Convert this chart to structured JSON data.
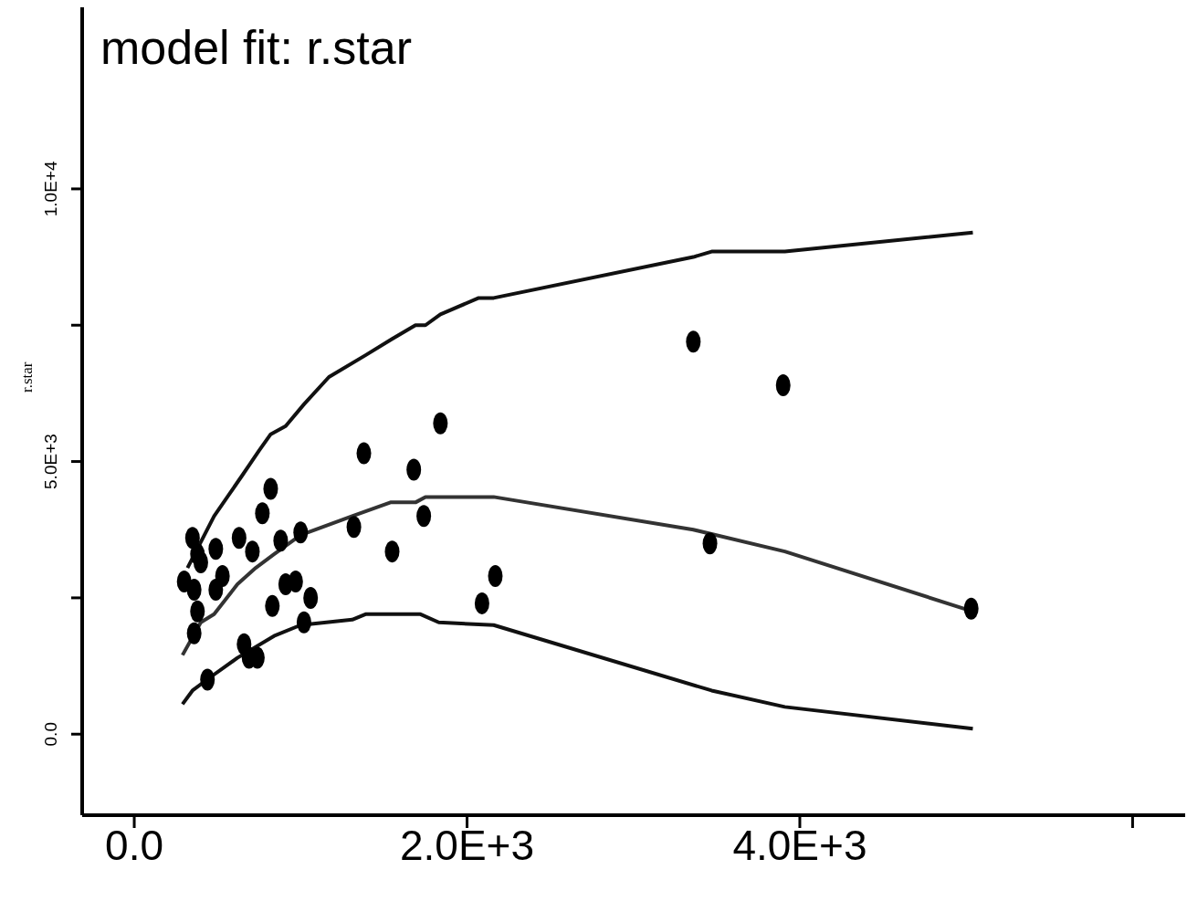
{
  "chart_data": {
    "type": "scatter",
    "title": "model fit: r.star",
    "ylabel": "r.star",
    "xlim": [
      -313,
      6316
    ],
    "ylim": [
      -1486,
      13330
    ],
    "xticks": [
      {
        "value": 0,
        "label": "0.0"
      },
      {
        "value": 2000,
        "label": "2.0E+3"
      },
      {
        "value": 4000,
        "label": "4.0E+3"
      },
      {
        "value": 6000,
        "label": null
      }
    ],
    "yticks": [
      {
        "value": 0,
        "label": "0.0"
      },
      {
        "value": 2500,
        "label": null
      },
      {
        "value": 5000,
        "label": "5.0E+3"
      },
      {
        "value": 7500,
        "label": null
      },
      {
        "value": 10000,
        "label": "1.0E+4"
      }
    ],
    "grid": false,
    "legend": false,
    "series": [
      {
        "color": "#000000",
        "marker": "circle",
        "x": [
          300,
          350,
          360,
          380,
          400,
          360,
          380,
          440,
          490,
          490,
          530,
          630,
          660,
          710,
          690,
          740,
          770,
          820,
          830,
          880,
          910,
          970,
          1000,
          1020,
          1060,
          1320,
          1380,
          1550,
          1680,
          1740,
          1840,
          2090,
          2170,
          3360,
          3460,
          3900,
          5030
        ],
        "values": [
          2800,
          3600,
          2650,
          3300,
          3150,
          1850,
          2250,
          1000,
          3400,
          2650,
          2900,
          3600,
          1650,
          3350,
          1400,
          1400,
          4050,
          4500,
          2350,
          3550,
          2750,
          2800,
          3700,
          2050,
          2500,
          3800,
          5150,
          3350,
          4850,
          4000,
          5700,
          2400,
          2900,
          7200,
          3500,
          6400,
          2300
        ]
      },
      {
        "type": "line",
        "color": "#111111",
        "marker": "none",
        "line_style": "solid",
        "x": [
          320,
          480,
          650,
          750,
          820,
          910,
          1020,
          1170,
          1390,
          1550,
          1690,
          1750,
          1840,
          2070,
          2160,
          3360,
          3470,
          3910,
          5040
        ],
        "values": [
          3050,
          4000,
          4750,
          5200,
          5500,
          5650,
          6050,
          6550,
          6950,
          7250,
          7500,
          7500,
          7700,
          8000,
          8000,
          8750,
          8850,
          8850,
          9200
        ]
      },
      {
        "type": "line",
        "color": "#333333",
        "marker": "none",
        "line_style": "solid",
        "x": [
          290,
          400,
          480,
          620,
          730,
          840,
          1000,
          1310,
          1540,
          1690,
          1750,
          2160,
          3360,
          3910,
          5040
        ],
        "values": [
          1450,
          2050,
          2200,
          2750,
          3050,
          3300,
          3650,
          4000,
          4250,
          4250,
          4350,
          4350,
          3750,
          3350,
          2250
        ]
      },
      {
        "type": "line",
        "color": "#111111",
        "marker": "none",
        "line_style": "solid",
        "x": [
          290,
          350,
          460,
          620,
          840,
          1000,
          1310,
          1390,
          1720,
          1830,
          2160,
          3470,
          3910,
          5040
        ],
        "values": [
          550,
          800,
          1050,
          1400,
          1800,
          2000,
          2100,
          2200,
          2200,
          2050,
          2000,
          800,
          500,
          100
        ]
      }
    ]
  }
}
